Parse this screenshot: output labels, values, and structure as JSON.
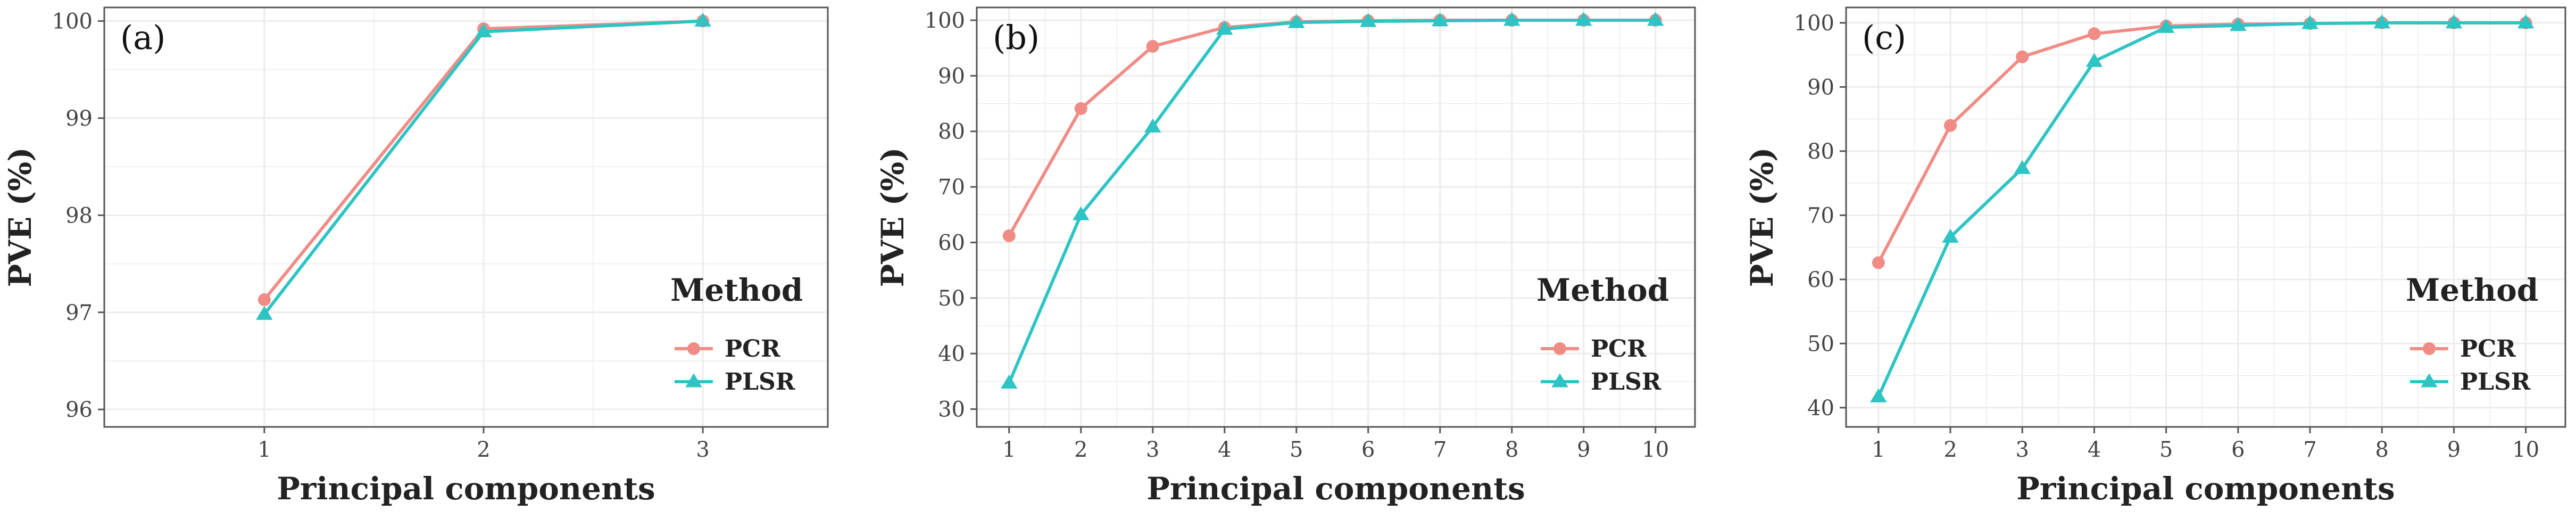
{
  "colors": {
    "pcr": "#F08C85",
    "plsr": "#2EC4C4",
    "grid": "#ECECEC",
    "frame": "#555555",
    "text": "#222222"
  },
  "legend": {
    "title": "Method",
    "items": [
      {
        "label": "PCR",
        "marker": "circle"
      },
      {
        "label": "PLSR",
        "marker": "triangle"
      }
    ]
  },
  "chart_data": [
    {
      "type": "line",
      "panel_label": "(a)",
      "xlabel": "Principal components",
      "ylabel": "PVE (%)",
      "x": [
        1,
        2,
        3
      ],
      "xlim": [
        0.27,
        3.57
      ],
      "ylim": [
        95.82,
        100.14
      ],
      "yticks": [
        96,
        97,
        98,
        99,
        100
      ],
      "series": [
        {
          "name": "PCR",
          "values": [
            97.13,
            99.92,
            100.0
          ]
        },
        {
          "name": "PLSR",
          "values": [
            96.98,
            99.89,
            100.0
          ]
        }
      ],
      "grid": true,
      "legend": "bottom-right"
    },
    {
      "type": "line",
      "panel_label": "(b)",
      "xlabel": "Principal components",
      "ylabel": "PVE (%)",
      "x": [
        1,
        2,
        3,
        4,
        5,
        6,
        7,
        8,
        9,
        10
      ],
      "xlim": [
        0.55,
        10.55
      ],
      "ylim": [
        26.8,
        102.3
      ],
      "yticks": [
        30,
        40,
        50,
        60,
        70,
        80,
        90,
        100
      ],
      "series": [
        {
          "name": "PCR",
          "values": [
            61.2,
            84.1,
            95.3,
            98.7,
            99.7,
            99.9,
            100.0,
            100.0,
            100.0,
            100.0
          ]
        },
        {
          "name": "PLSR",
          "values": [
            34.7,
            65.0,
            80.8,
            98.4,
            99.6,
            99.8,
            99.9,
            100.0,
            100.0,
            100.0
          ]
        }
      ],
      "grid": true,
      "legend": "bottom-right"
    },
    {
      "type": "line",
      "panel_label": "(c)",
      "xlabel": "Principal components",
      "ylabel": "PVE (%)",
      "x": [
        1,
        2,
        3,
        4,
        5,
        6,
        7,
        8,
        9,
        10
      ],
      "xlim": [
        0.55,
        10.55
      ],
      "ylim": [
        37.0,
        102.4
      ],
      "yticks": [
        40,
        50,
        60,
        70,
        80,
        90,
        100
      ],
      "series": [
        {
          "name": "PCR",
          "values": [
            62.6,
            84.0,
            94.7,
            98.3,
            99.5,
            99.8,
            99.9,
            100.0,
            100.0,
            100.0
          ]
        },
        {
          "name": "PLSR",
          "values": [
            41.7,
            66.6,
            77.3,
            94.0,
            99.3,
            99.6,
            99.9,
            100.0,
            100.0,
            100.0
          ]
        }
      ],
      "grid": true,
      "legend": "bottom-right"
    }
  ]
}
